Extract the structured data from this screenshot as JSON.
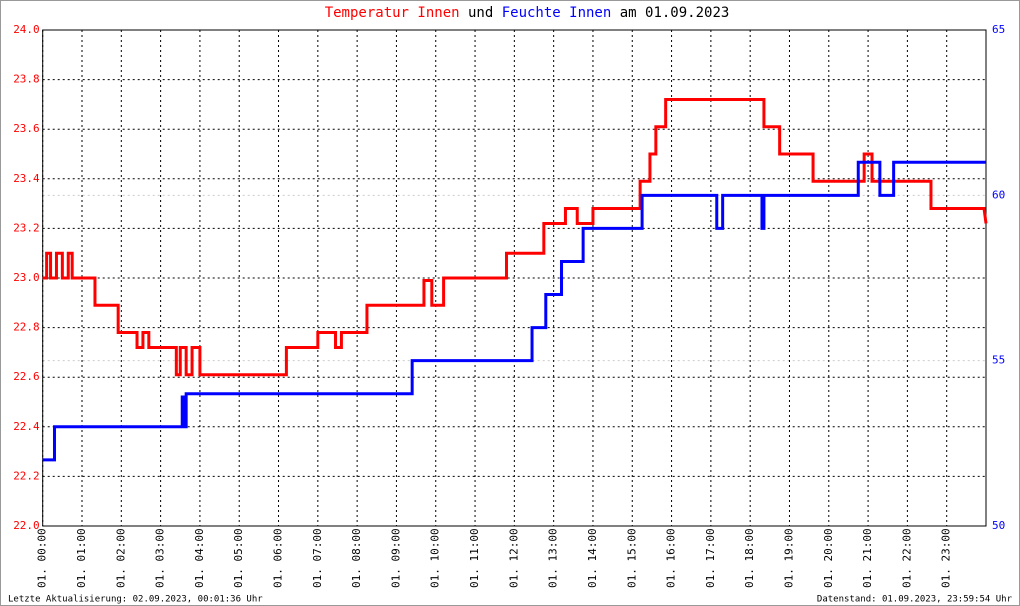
{
  "chart_data": {
    "type": "line",
    "title_connector": "und",
    "title_suffix": "am 01.09.2023",
    "footer_left": "Letzte Aktualisierung: 02.09.2023, 00:01:36 Uhr",
    "footer_right": "Datenstand: 01.09.2023, 23:59:54 Uhr",
    "grid": true,
    "xlim": [
      0,
      24
    ],
    "xticks": [
      {
        "value": 0,
        "label": "01. 00:00"
      },
      {
        "value": 1,
        "label": "01. 01:00"
      },
      {
        "value": 2,
        "label": "01. 02:00"
      },
      {
        "value": 3,
        "label": "01. 03:00"
      },
      {
        "value": 4,
        "label": "01. 04:00"
      },
      {
        "value": 5,
        "label": "01. 05:00"
      },
      {
        "value": 6,
        "label": "01. 06:00"
      },
      {
        "value": 7,
        "label": "01. 07:00"
      },
      {
        "value": 8,
        "label": "01. 08:00"
      },
      {
        "value": 9,
        "label": "01. 09:00"
      },
      {
        "value": 10,
        "label": "01. 10:00"
      },
      {
        "value": 11,
        "label": "01. 11:00"
      },
      {
        "value": 12,
        "label": "01. 12:00"
      },
      {
        "value": 13,
        "label": "01. 13:00"
      },
      {
        "value": 14,
        "label": "01. 14:00"
      },
      {
        "value": 15,
        "label": "01. 15:00"
      },
      {
        "value": 16,
        "label": "01. 16:00"
      },
      {
        "value": 17,
        "label": "01. 17:00"
      },
      {
        "value": 18,
        "label": "01. 18:00"
      },
      {
        "value": 19,
        "label": "01. 19:00"
      },
      {
        "value": 20,
        "label": "01. 20:00"
      },
      {
        "value": 21,
        "label": "01. 21:00"
      },
      {
        "value": 22,
        "label": "01. 22:00"
      },
      {
        "value": 23,
        "label": "01. 23:00"
      }
    ],
    "ylim": [
      22,
      24
    ],
    "yticks": [
      {
        "value": 22,
        "label": "22.0"
      },
      22.2,
      22.4,
      22.6,
      22.8,
      {
        "value": 23,
        "label": "23.0"
      },
      23.2,
      23.4,
      23.6,
      23.8,
      {
        "value": 24,
        "label": "24.0"
      }
    ],
    "y2lim": [
      50,
      65
    ],
    "y2ticks": [
      50,
      55,
      60,
      65
    ],
    "series": [
      {
        "name": "Temperatur Innen",
        "color": "#ff0000",
        "x": [
          0,
          0.1,
          0.1,
          0.2,
          0.2,
          0.35,
          0.35,
          0.5,
          0.5,
          0.65,
          0.65,
          0.75,
          0.75,
          1.33,
          1.33,
          1.92,
          1.92,
          2.4,
          2.4,
          2.55,
          2.55,
          2.7,
          2.7,
          3.4,
          3.4,
          3.5,
          3.5,
          3.65,
          3.65,
          3.8,
          3.8,
          4.0,
          4.0,
          6.2,
          6.2,
          7.0,
          7.0,
          7.45,
          7.45,
          7.6,
          7.6,
          8.25,
          8.25,
          9.7,
          9.7,
          9.9,
          9.9,
          10.2,
          10.2,
          11.8,
          11.8,
          12.75,
          12.75,
          13.3,
          13.3,
          13.6,
          13.6,
          14.0,
          14.0,
          15.2,
          15.2,
          15.45,
          15.45,
          15.6,
          15.6,
          15.85,
          15.85,
          18.35,
          18.35,
          18.75,
          18.75,
          19.6,
          19.6,
          20.9,
          20.9,
          21.1,
          21.1,
          22.6,
          22.6,
          23.95,
          24
        ],
        "values": [
          23.0,
          23.0,
          23.1,
          23.1,
          23.0,
          23.0,
          23.1,
          23.1,
          23.0,
          23.0,
          23.1,
          23.1,
          23.0,
          23.0,
          22.89,
          22.89,
          22.78,
          22.78,
          22.72,
          22.72,
          22.78,
          22.78,
          22.72,
          22.72,
          22.61,
          22.61,
          22.72,
          22.72,
          22.61,
          22.61,
          22.72,
          22.72,
          22.61,
          22.61,
          22.72,
          22.72,
          22.78,
          22.78,
          22.72,
          22.72,
          22.78,
          22.78,
          22.89,
          22.89,
          22.99,
          22.99,
          22.89,
          22.89,
          23.0,
          23.0,
          23.1,
          23.1,
          23.22,
          23.22,
          23.28,
          23.28,
          23.22,
          23.22,
          23.28,
          23.28,
          23.39,
          23.39,
          23.5,
          23.5,
          23.61,
          23.61,
          23.72,
          23.72,
          23.61,
          23.61,
          23.5,
          23.5,
          23.39,
          23.39,
          23.5,
          23.5,
          23.39,
          23.39,
          23.28,
          23.28,
          23.22
        ]
      },
      {
        "name": "Feuchte Innen",
        "color": "#0000ff",
        "axis": "y2",
        "x": [
          0,
          0.3,
          0.3,
          3.55,
          3.55,
          3.6,
          3.6,
          3.65,
          3.65,
          9.4,
          9.4,
          12.45,
          12.45,
          12.8,
          12.8,
          13.2,
          13.2,
          13.75,
          13.75,
          15.25,
          15.25,
          17.15,
          17.15,
          17.3,
          17.3,
          18.3,
          18.3,
          18.35,
          18.35,
          20.75,
          20.75,
          21.3,
          21.3,
          21.65,
          21.65,
          24
        ],
        "values": [
          52,
          52,
          53,
          53,
          53.9,
          53.9,
          53,
          53,
          54,
          54,
          55,
          55,
          56,
          56,
          57,
          57,
          58,
          58,
          59,
          59,
          60,
          60,
          59,
          59,
          60,
          60,
          59,
          59,
          60,
          60,
          61,
          61,
          60,
          60,
          61,
          61
        ]
      }
    ]
  }
}
